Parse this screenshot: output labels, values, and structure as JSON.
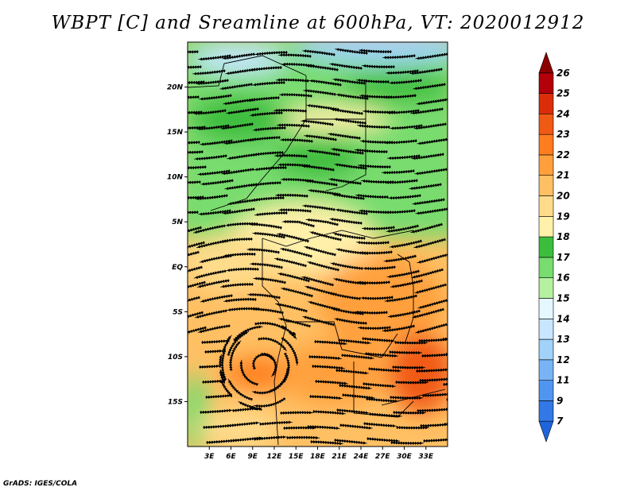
{
  "title": "WBPT [C] and Sreamline at 600hPa, VT: 2020012912",
  "credit": "GrADS: IGES/COLA",
  "map": {
    "lat_range": [
      -20,
      25
    ],
    "lon_range": [
      0,
      36
    ],
    "y_ticks": [
      "20N",
      "15N",
      "10N",
      "5N",
      "EQ",
      "5S",
      "10S",
      "15S"
    ],
    "y_tick_values": [
      20,
      15,
      10,
      5,
      0,
      -5,
      -10,
      -15
    ],
    "x_ticks": [
      "3E",
      "6E",
      "9E",
      "12E",
      "15E",
      "18E",
      "21E",
      "24E",
      "27E",
      "30E",
      "33E"
    ],
    "x_tick_values": [
      3,
      6,
      9,
      12,
      15,
      18,
      21,
      24,
      27,
      30,
      33
    ]
  },
  "colorbar": {
    "labels": [
      "7",
      "9",
      "11",
      "12",
      "13",
      "14",
      "15",
      "16",
      "17",
      "18",
      "19",
      "20",
      "21",
      "22",
      "23",
      "24",
      "25",
      "26"
    ],
    "colors": [
      "#1e64dc",
      "#3278e6",
      "#5096f0",
      "#78b4f5",
      "#a0d2fa",
      "#c8e6ff",
      "#e6f8ff",
      "#b4f0a0",
      "#78dc6e",
      "#3cbe3c",
      "#fff0aa",
      "#ffdc8c",
      "#ffc064",
      "#ffa03c",
      "#ff7d1e",
      "#f05a14",
      "#dc2d0a",
      "#b4000a",
      "#8c0000"
    ]
  }
}
